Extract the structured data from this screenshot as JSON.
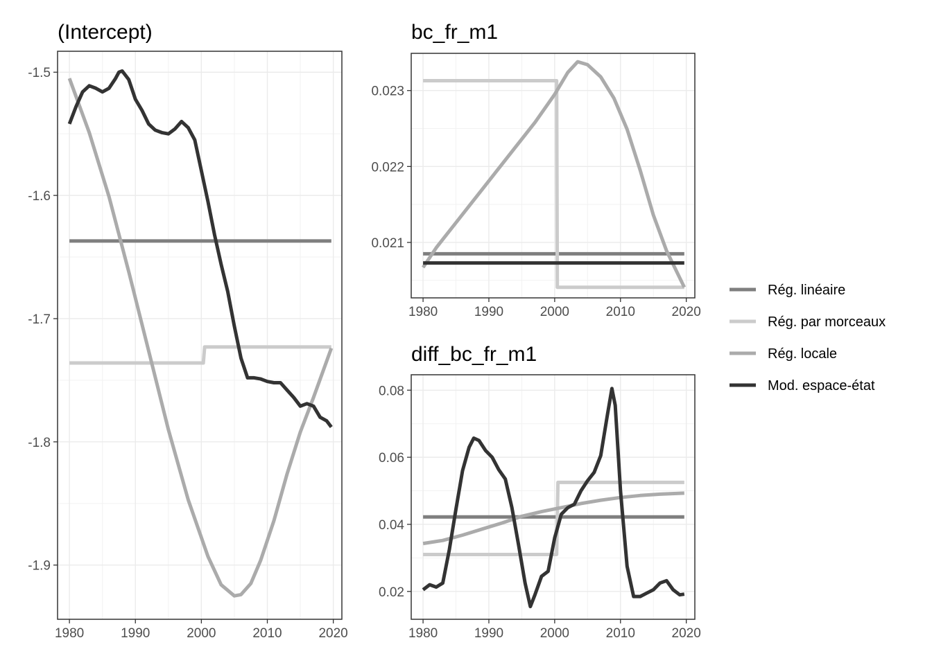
{
  "chart_data": [
    {
      "type": "line",
      "title": "(Intercept)",
      "xlabel": "",
      "ylabel": "",
      "xlim": [
        1978.2,
        2021.3
      ],
      "ylim": [
        -1.944,
        -1.483
      ],
      "x_ticks": [
        1980,
        1990,
        2000,
        2010,
        2020
      ],
      "x_tick_labels": [
        "1980",
        "1990",
        "2000",
        "2010",
        "2020"
      ],
      "y_ticks": [
        -1.5,
        -1.6,
        -1.7,
        -1.8,
        -1.9
      ],
      "y_tick_labels": [
        "-1.5",
        "-1.6",
        "-1.7",
        "-1.8",
        "-1.9"
      ],
      "grid": true,
      "series": [
        {
          "name": "Rég. linéaire",
          "x": [
            1980,
            2019.7
          ],
          "y": [
            -1.637,
            -1.637
          ]
        },
        {
          "name": "Rég. par morceaux",
          "x": [
            1980,
            2000.3,
            2000.5,
            2019.7
          ],
          "y": [
            -1.736,
            -1.736,
            -1.723,
            -1.723
          ]
        },
        {
          "name": "Rég. locale",
          "x": [
            1980,
            1983,
            1986,
            1989,
            1992,
            1995,
            1998,
            2001,
            2003,
            2005,
            2006,
            2007.5,
            2009,
            2011,
            2013,
            2015,
            2017,
            2019.7
          ],
          "y": [
            -1.505,
            -1.549,
            -1.601,
            -1.662,
            -1.726,
            -1.79,
            -1.847,
            -1.893,
            -1.916,
            -1.925,
            -1.924,
            -1.915,
            -1.896,
            -1.864,
            -1.826,
            -1.792,
            -1.764,
            -1.724
          ]
        },
        {
          "name": "Mod. espace-état",
          "x": [
            1980,
            1981,
            1982,
            1983,
            1984,
            1985,
            1986,
            1987,
            1987.5,
            1988,
            1989,
            1990,
            1991,
            1992,
            1993,
            1994,
            1995,
            1996,
            1997,
            1998,
            1999,
            2000,
            2001,
            2002,
            2003,
            2004,
            2005,
            2006,
            2007,
            2008,
            2009,
            2010,
            2011,
            2012,
            2013,
            2014,
            2015,
            2016,
            2017,
            2018,
            2019,
            2019.7
          ],
          "y": [
            -1.542,
            -1.528,
            -1.516,
            -1.511,
            -1.513,
            -1.516,
            -1.513,
            -1.505,
            -1.5,
            -1.499,
            -1.506,
            -1.522,
            -1.531,
            -1.542,
            -1.547,
            -1.549,
            -1.55,
            -1.546,
            -1.54,
            -1.545,
            -1.555,
            -1.58,
            -1.605,
            -1.632,
            -1.656,
            -1.678,
            -1.706,
            -1.732,
            -1.748,
            -1.748,
            -1.749,
            -1.751,
            -1.752,
            -1.752,
            -1.758,
            -1.764,
            -1.771,
            -1.769,
            -1.771,
            -1.78,
            -1.783,
            -1.788
          ]
        }
      ]
    },
    {
      "type": "line",
      "title": "bc_fr_m1",
      "xlabel": "",
      "ylabel": "",
      "xlim": [
        1978.2,
        2021.3
      ],
      "ylim": [
        0.02027,
        0.02349
      ],
      "x_ticks": [
        1980,
        1990,
        2000,
        2010,
        2020
      ],
      "x_tick_labels": [
        "1980",
        "1990",
        "2000",
        "2010",
        "2020"
      ],
      "y_ticks": [
        0.021,
        0.022,
        0.023
      ],
      "y_tick_labels": [
        "0.021",
        "0.022",
        "0.023"
      ],
      "grid": true,
      "series": [
        {
          "name": "Rég. linéaire",
          "x": [
            1980,
            2019.7
          ],
          "y": [
            0.02085,
            0.02085
          ]
        },
        {
          "name": "Rég. par morceaux",
          "x": [
            1980,
            2000.3,
            2000.4,
            2019.7
          ],
          "y": [
            0.02313,
            0.02313,
            0.02041,
            0.02041
          ]
        },
        {
          "name": "Rég. locale",
          "x": [
            1980,
            1982,
            1985,
            1988,
            1991,
            1994,
            1997,
            2000,
            2002,
            2003.5,
            2005,
            2007,
            2009,
            2011,
            2013,
            2015,
            2017,
            2019.7
          ],
          "y": [
            0.02067,
            0.02093,
            0.02126,
            0.02159,
            0.02192,
            0.02225,
            0.02258,
            0.02295,
            0.02324,
            0.02338,
            0.02334,
            0.02318,
            0.0229,
            0.02249,
            0.02195,
            0.02136,
            0.02089,
            0.02041
          ]
        },
        {
          "name": "Mod. espace-état",
          "x": [
            1980,
            2019.7
          ],
          "y": [
            0.02073,
            0.02073
          ]
        }
      ]
    },
    {
      "type": "line",
      "title": "diff_bc_fr_m1",
      "xlabel": "",
      "ylabel": "",
      "xlim": [
        1978.2,
        2021.3
      ],
      "ylim": [
        0.0117,
        0.0846
      ],
      "x_ticks": [
        1980,
        1990,
        2000,
        2010,
        2020
      ],
      "x_tick_labels": [
        "1980",
        "1990",
        "2000",
        "2010",
        "2020"
      ],
      "y_ticks": [
        0.02,
        0.04,
        0.06,
        0.08
      ],
      "y_tick_labels": [
        "0.02",
        "0.04",
        "0.06",
        "0.08"
      ],
      "grid": true,
      "series": [
        {
          "name": "Rég. linéaire",
          "x": [
            1980,
            2019.7
          ],
          "y": [
            0.0422,
            0.0422
          ]
        },
        {
          "name": "Rég. par morceaux",
          "x": [
            1980,
            2000.3,
            2000.5,
            2019.7
          ],
          "y": [
            0.031,
            0.031,
            0.0525,
            0.0525
          ]
        },
        {
          "name": "Rég. locale",
          "x": [
            1980,
            1983,
            1986,
            1989,
            1992,
            1995,
            1998,
            2001,
            2004,
            2007,
            2010,
            2013,
            2016,
            2019.7
          ],
          "y": [
            0.0343,
            0.0352,
            0.0368,
            0.0386,
            0.0404,
            0.0424,
            0.0438,
            0.045,
            0.0462,
            0.0472,
            0.048,
            0.0486,
            0.049,
            0.0493
          ]
        },
        {
          "name": "Mod. espace-état",
          "x": [
            1980,
            1981,
            1982,
            1983,
            1984,
            1985,
            1986,
            1987,
            1987.7,
            1988.5,
            1989.5,
            1990.5,
            1991.5,
            1992.5,
            1993.5,
            1994.5,
            1995.5,
            1996.3,
            1997,
            1998,
            1999,
            2000,
            2001,
            2002,
            2003,
            2004,
            2005,
            2006,
            2007,
            2008,
            2008.7,
            2009.2,
            2010,
            2011,
            2012,
            2013,
            2014,
            2015,
            2016,
            2017,
            2018,
            2019,
            2019.7
          ],
          "y": [
            0.0205,
            0.022,
            0.0213,
            0.0225,
            0.0325,
            0.0445,
            0.056,
            0.063,
            0.0657,
            0.065,
            0.062,
            0.06,
            0.0563,
            0.0535,
            0.045,
            0.034,
            0.0225,
            0.0155,
            0.019,
            0.0245,
            0.026,
            0.036,
            0.043,
            0.045,
            0.046,
            0.05,
            0.053,
            0.0555,
            0.0605,
            0.0725,
            0.0805,
            0.0755,
            0.05,
            0.0275,
            0.0185,
            0.0185,
            0.0195,
            0.0205,
            0.0225,
            0.0232,
            0.0205,
            0.019,
            0.0192
          ]
        }
      ]
    }
  ],
  "legend": {
    "position": "right",
    "items": [
      {
        "label": "Rég. linéaire",
        "color": "#7f7f7f"
      },
      {
        "label": "Rég. par morceaux",
        "color": "#cbcbcb"
      },
      {
        "label": "Rég. locale",
        "color": "#ababab"
      },
      {
        "label": "Mod. espace-état",
        "color": "#333333"
      }
    ]
  },
  "series_colors": [
    "#7f7f7f",
    "#cbcbcb",
    "#ababab",
    "#333333"
  ]
}
